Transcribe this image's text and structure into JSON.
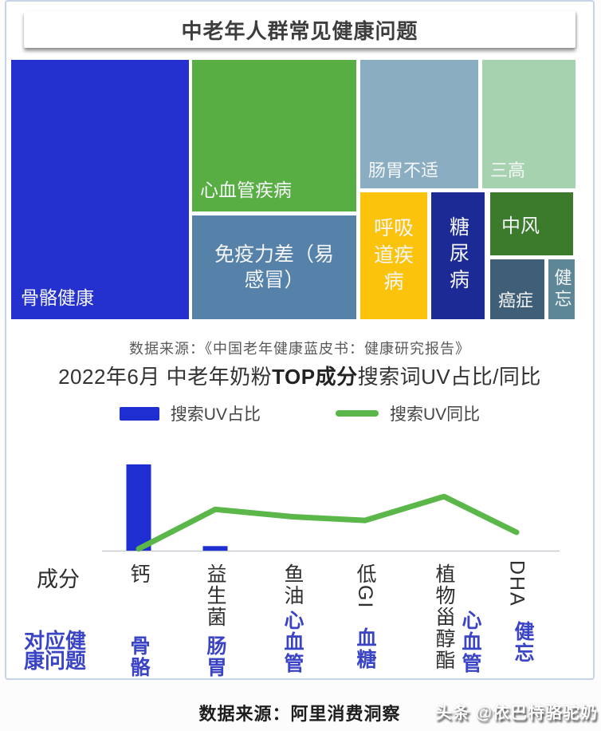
{
  "colors": {
    "bar_blue": "#1f2ed0",
    "line_green": "#5bb74a",
    "label_blue": "#3a44c4",
    "card_border": "#c7d3e6"
  },
  "treemap": {
    "title": "中老年人群常见健康问题",
    "cells": [
      {
        "label": "骨骼健康",
        "color": "#2531ce"
      },
      {
        "label": "心血管疾病",
        "color": "#58ad43"
      },
      {
        "label": "免疫力差（易感冒）",
        "color": "#5681a9"
      },
      {
        "label": "肠胃不适",
        "color": "#8badc2"
      },
      {
        "label": "三高",
        "color": "#a7d2b0"
      },
      {
        "label": "呼吸道疾病",
        "color": "#fcc30d"
      },
      {
        "label": "糖尿病",
        "color": "#1c2a96"
      },
      {
        "label": "中风",
        "color": "#3c7b2b"
      },
      {
        "label": "癌症",
        "color": "#3f5e78"
      },
      {
        "label": "健忘",
        "color": "#5d8797"
      }
    ],
    "source": "数据来源：《中国老年健康蓝皮书：健康研究报告》"
  },
  "chart_section": {
    "title_prefix": "2022年6月 中老年奶粉",
    "title_bold": "TOP成分",
    "title_suffix": "搜索词UV占比/同比",
    "legend": [
      {
        "label": "搜索UV占比",
        "type": "bar"
      },
      {
        "label": "搜索UV同比",
        "type": "line"
      }
    ]
  },
  "chart_data": {
    "type": "bar+line combo",
    "categories": [
      "钙",
      "益生菌",
      "鱼油",
      "低GI",
      "植物甾醇酯",
      "DHA"
    ],
    "series": [
      {
        "name": "搜索UV占比",
        "type": "bar",
        "color": "#1f2ed0",
        "values": [
          94,
          5,
          0,
          0,
          0,
          0
        ]
      },
      {
        "name": "搜索UV同比",
        "type": "line",
        "color": "#5bb74a",
        "values": [
          2,
          45,
          37,
          33,
          59,
          20
        ]
      }
    ],
    "xlabel": "",
    "ylabel": "",
    "ylim": [
      0,
      100
    ],
    "grid": false,
    "legend_position": "top-center",
    "values_estimated": true
  },
  "table": {
    "row1_header": "成分",
    "row2_header": "对应健康问题",
    "ingredients": [
      "钙",
      "益生菌",
      "鱼油",
      "低GI",
      "植物甾醇酯",
      "DHA"
    ],
    "problems": [
      "骨骼",
      "肠胃",
      "心血管",
      "血糖",
      "心血管",
      "健忘"
    ]
  },
  "footer": {
    "source": "数据来源：阿里消费洞察",
    "watermark": "头条 @依巴特骆驼奶"
  }
}
